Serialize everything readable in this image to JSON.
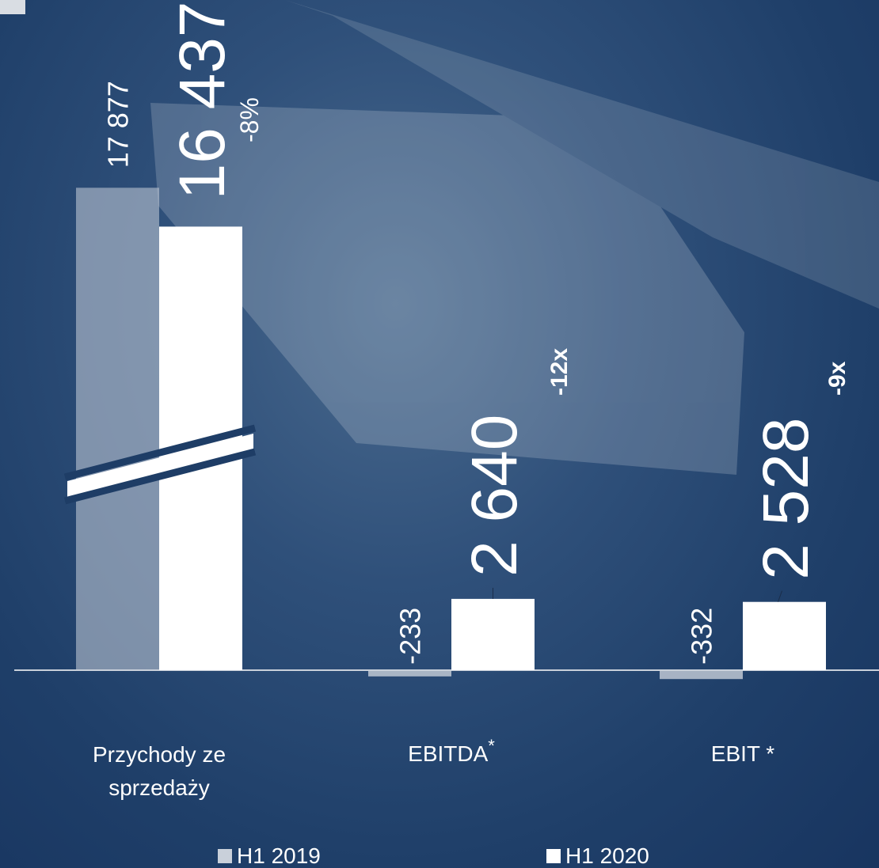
{
  "chart_data": {
    "type": "bar",
    "categories": [
      "Przychody ze sprzedaży",
      "EBITDA",
      "EBIT"
    ],
    "footnote_marker": "*",
    "series": [
      {
        "name": "H1 2019",
        "color": "#c9d0da",
        "values": [
          17877,
          -233,
          -332
        ],
        "value_labels": [
          "17 877",
          "-233",
          "-332"
        ]
      },
      {
        "name": "H1 2020",
        "color": "#ffffff",
        "values": [
          16437,
          2640,
          2528
        ],
        "value_labels": [
          "16 437",
          "2 640",
          "2 528"
        ]
      }
    ],
    "changes": [
      "-8%",
      "-12x",
      "-9x"
    ],
    "ylim": [
      -1000,
      23000
    ],
    "axis_break": true
  }
}
